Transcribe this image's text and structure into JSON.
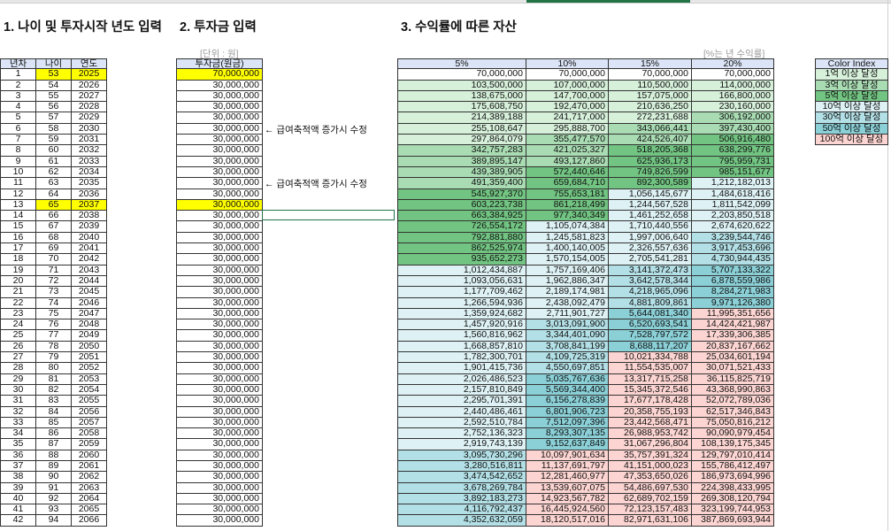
{
  "titles": {
    "section1": "1. 나이 및 투자시작 년도 입력",
    "section2": "2. 투자금 입력",
    "section3": "3. 수익률에 따른 자산"
  },
  "units": {
    "investment": "[단위 : 원]",
    "returns": "[%는 년 수익률]"
  },
  "age_table": {
    "headers": [
      "년차",
      "나이",
      "연도"
    ]
  },
  "investment_table": {
    "header": "투자금(원금)"
  },
  "returns_table": {
    "headers": [
      "5%",
      "10%",
      "15%",
      "20%"
    ]
  },
  "notes": [
    "← 급여축적액 증가시 수정",
    "← 급여축적액 증가시 수정"
  ],
  "color_index": {
    "header": "Color Index",
    "items": [
      "1억 이상 달성",
      "3억 이상 달성",
      "5억 이상 달성",
      "10억 이상 달성",
      "30억 이상 달성",
      "50억 이상 달성",
      "100억 이상 달성"
    ]
  },
  "colors": {
    "highlight": "#ffff00",
    "header": "#dbe5f7",
    "selection": "#217346"
  },
  "highlighted_rows": [
    1,
    13
  ],
  "years": [
    1,
    2,
    3,
    4,
    5,
    6,
    7,
    8,
    9,
    10,
    11,
    12,
    13,
    14,
    15,
    16,
    17,
    18,
    19,
    20,
    21,
    22,
    23,
    24,
    25,
    26,
    27,
    28,
    29,
    30,
    31,
    32,
    33,
    34,
    35,
    36,
    37,
    38,
    39,
    40,
    41,
    42
  ],
  "ages": [
    53,
    54,
    55,
    56,
    57,
    58,
    59,
    60,
    61,
    62,
    63,
    64,
    65,
    66,
    67,
    68,
    69,
    70,
    71,
    72,
    73,
    74,
    75,
    76,
    77,
    78,
    79,
    80,
    81,
    82,
    83,
    84,
    85,
    86,
    87,
    88,
    89,
    90,
    91,
    92,
    93,
    94
  ],
  "calendar_years": [
    2025,
    2026,
    2027,
    2028,
    2029,
    2030,
    2031,
    2032,
    2033,
    2034,
    2035,
    2036,
    2037,
    2038,
    2039,
    2040,
    2041,
    2042,
    2043,
    2044,
    2045,
    2046,
    2047,
    2048,
    2049,
    2050,
    2051,
    2052,
    2053,
    2054,
    2055,
    2056,
    2057,
    2058,
    2059,
    2060,
    2061,
    2062,
    2063,
    2064,
    2065,
    2066
  ],
  "investments": [
    "70,000,000",
    "30,000,000",
    "30,000,000",
    "30,000,000",
    "30,000,000",
    "30,000,000",
    "30,000,000",
    "30,000,000",
    "30,000,000",
    "30,000,000",
    "30,000,000",
    "30,000,000",
    "30,000,000",
    "30,000,000",
    "30,000,000",
    "30,000,000",
    "30,000,000",
    "30,000,000",
    "30,000,000",
    "30,000,000",
    "30,000,000",
    "30,000,000",
    "30,000,000",
    "30,000,000",
    "30,000,000",
    "30,000,000",
    "30,000,000",
    "30,000,000",
    "30,000,000",
    "30,000,000",
    "30,000,000",
    "30,000,000",
    "30,000,000",
    "30,000,000",
    "30,000,000",
    "30,000,000",
    "30,000,000",
    "30,000,000",
    "30,000,000",
    "30,000,000",
    "30,000,000",
    "30,000,000"
  ],
  "returns": {
    "r5": [
      "70,000,000",
      "103,500,000",
      "138,675,000",
      "175,608,750",
      "214,389,188",
      "255,108,647",
      "297,864,079",
      "342,757,283",
      "389,895,147",
      "439,389,905",
      "491,359,400",
      "545,927,370",
      "603,223,738",
      "663,384,925",
      "726,554,172",
      "792,881,880",
      "862,525,974",
      "935,652,273",
      "1,012,434,887",
      "1,093,056,631",
      "1,177,709,462",
      "1,266,594,936",
      "1,359,924,682",
      "1,457,920,916",
      "1,560,816,962",
      "1,668,857,810",
      "1,782,300,701",
      "1,901,415,736",
      "2,026,486,523",
      "2,157,810,849",
      "2,295,701,391",
      "2,440,486,461",
      "2,592,510,784",
      "2,752,136,323",
      "2,919,743,139",
      "3,095,730,296",
      "3,280,516,811",
      "3,474,542,652",
      "3,678,269,784",
      "3,892,183,273",
      "4,116,792,437",
      "4,352,632,059"
    ],
    "r10": [
      "70,000,000",
      "107,000,000",
      "147,700,000",
      "192,470,000",
      "241,717,000",
      "295,888,700",
      "355,477,570",
      "421,025,327",
      "493,127,860",
      "572,440,646",
      "659,684,710",
      "755,653,181",
      "861,218,499",
      "977,340,349",
      "1,105,074,384",
      "1,245,581,823",
      "1,400,140,005",
      "1,570,154,005",
      "1,757,169,406",
      "1,962,886,347",
      "2,189,174,981",
      "2,438,092,479",
      "2,711,901,727",
      "3,013,091,900",
      "3,344,401,090",
      "3,708,841,199",
      "4,109,725,319",
      "4,550,697,851",
      "5,035,767,636",
      "5,569,344,400",
      "6,156,278,839",
      "6,801,906,723",
      "7,512,097,396",
      "8,293,307,135",
      "9,152,637,849",
      "10,097,901,634",
      "11,137,691,797",
      "12,281,460,977",
      "13,539,607,075",
      "14,923,567,782",
      "16,445,924,560",
      "18,120,517,016"
    ],
    "r15": [
      "70,000,000",
      "110,500,000",
      "157,075,000",
      "210,636,250",
      "272,231,688",
      "343,066,441",
      "424,526,407",
      "518,205,368",
      "625,936,173",
      "749,826,599",
      "892,300,589",
      "1,056,145,677",
      "1,244,567,528",
      "1,461,252,658",
      "1,710,440,556",
      "1,997,006,640",
      "2,326,557,636",
      "2,705,541,281",
      "3,141,372,473",
      "3,642,578,344",
      "4,218,965,096",
      "4,881,809,861",
      "5,644,081,340",
      "6,520,693,541",
      "7,528,797,572",
      "8,688,117,207",
      "10,021,334,788",
      "11,554,535,007",
      "13,317,715,258",
      "15,345,372,546",
      "17,677,178,428",
      "20,358,755,193",
      "23,442,568,471",
      "26,988,953,742",
      "31,067,296,804",
      "35,757,391,324",
      "41,151,000,023",
      "47,353,650,026",
      "54,486,697,530",
      "62,689,702,159",
      "72,123,157,483",
      "82,971,631,106"
    ],
    "r20": [
      "70,000,000",
      "114,000,000",
      "166,800,000",
      "230,160,000",
      "306,192,000",
      "397,430,400",
      "506,916,480",
      "638,299,776",
      "795,959,731",
      "985,151,677",
      "1,212,182,013",
      "1,484,618,416",
      "1,811,542,099",
      "2,203,850,518",
      "2,674,620,622",
      "3,239,544,746",
      "3,917,453,696",
      "4,730,944,435",
      "5,707,133,322",
      "6,878,559,986",
      "8,284,271,983",
      "9,971,126,380",
      "11,995,351,656",
      "14,424,421,987",
      "17,339,306,385",
      "20,837,167,662",
      "25,034,601,194",
      "30,071,521,433",
      "36,115,825,719",
      "43,368,990,863",
      "52,072,789,036",
      "62,517,346,843",
      "75,050,816,212",
      "90,090,979,454",
      "108,139,175,345",
      "129,797,010,414",
      "155,786,412,497",
      "186,973,694,996",
      "224,398,433,995",
      "269,308,120,794",
      "323,199,744,953",
      "387,869,693,944"
    ]
  }
}
